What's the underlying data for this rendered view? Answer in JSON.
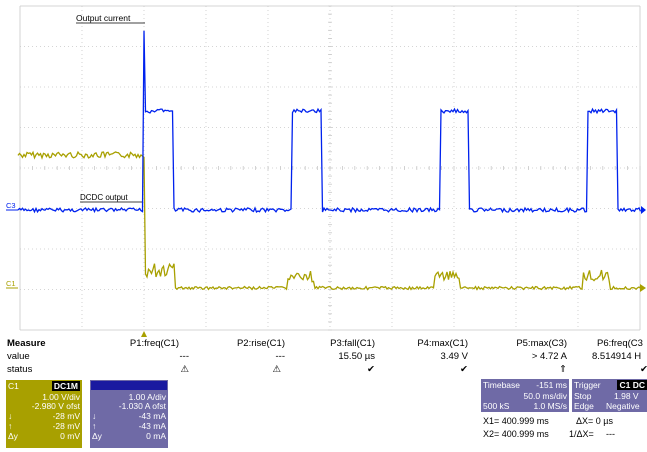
{
  "scope": {
    "labels": {
      "output_current": "Output current",
      "dcdc_output": "DCDC output",
      "c3": "C3",
      "c1": "C1"
    },
    "colors": {
      "c1": "#a8a000",
      "c3": "#0022ee",
      "grid": "#c8c8c8"
    }
  },
  "measure": {
    "title": "Measure",
    "row_value": "value",
    "row_status": "status",
    "columns": [
      {
        "name": "P1:freq(C1)",
        "value": "---",
        "status": "⚠"
      },
      {
        "name": "P2:rise(C1)",
        "value": "---",
        "status": "⚠"
      },
      {
        "name": "P3:fall(C1)",
        "value": "15.50 µs",
        "status": "✔"
      },
      {
        "name": "P4:max(C1)",
        "value": "3.49 V",
        "status": "✔"
      },
      {
        "name": "P5:max(C3)",
        "value": "> 4.72 A",
        "status": "⇑"
      },
      {
        "name": "P6:freq(C3",
        "value": "8.514914 H",
        "status": "✔"
      }
    ]
  },
  "c1_box": {
    "name": "C1",
    "tag": "DC1M",
    "vdiv": "1.00 V/div",
    "ofst": "-2.980 V ofst",
    "down": "-28 mV",
    "up": "-28 mV",
    "dy": "0 mV",
    "down_lbl": "↓",
    "up_lbl": "↑",
    "dy_lbl": "Δy",
    "color": "#a8a000"
  },
  "c3_box": {
    "vdiv": "1.00 A/div",
    "ofst": "-1.030 A ofst",
    "down": "-43 mA",
    "up": "-43 mA",
    "dy": "0 mA",
    "down_lbl": "↓",
    "up_lbl": "↑",
    "dy_lbl": "Δy",
    "color": "#6f6aa6"
  },
  "timebase": {
    "label": "Timebase",
    "offset": "-151 ms",
    "div": "50.0 ms/div",
    "samples": "500 kS",
    "rate": "1.0 MS/s"
  },
  "trigger": {
    "label": "Trigger",
    "tag": "C1 DC",
    "mode": "Stop",
    "level": "1.98 V",
    "type": "Edge",
    "slope": "Negative"
  },
  "cursors": {
    "x1": "X1= 400.999 ms",
    "x2": "X2= 400.999 ms",
    "dx": "ΔX= 0 µs",
    "inv_dx": "1/ΔX=",
    "inv_val": "---"
  }
}
